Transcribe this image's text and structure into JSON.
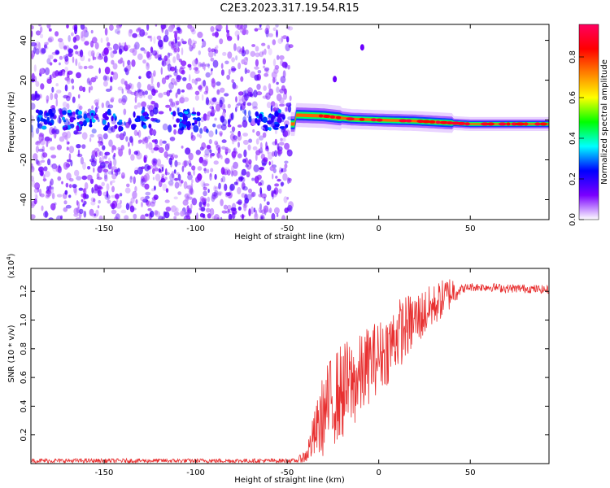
{
  "title": "C2E3.2023.317.19.54.R15",
  "chart_data": [
    {
      "type": "heatmap",
      "xlabel": "Height of straight line (km)",
      "ylabel": "Frequency (Hz)",
      "xlim": [
        -190,
        93
      ],
      "ylim": [
        -50,
        48
      ],
      "x_ticks": [
        -150,
        -100,
        -50,
        0,
        50
      ],
      "x_tick_labels": [
        "-150",
        "-100",
        "-50",
        "0",
        "50"
      ],
      "y_ticks": [
        -40,
        -20,
        0,
        20,
        40
      ],
      "y_tick_labels": [
        "-40",
        "-20",
        "0",
        "20",
        "40"
      ],
      "colorbar": {
        "label": "Normalized spectral amplitude",
        "range": [
          0,
          0.96
        ],
        "ticks": [
          0.0,
          0.2,
          0.4,
          0.6,
          0.8
        ],
        "tick_labels": [
          "0.0",
          "0.2",
          "0.4",
          "0.6",
          "0.8"
        ],
        "colors": [
          "#ffffff",
          "#7a00ff",
          "#0000ff",
          "#00ffff",
          "#00ff00",
          "#ffff00",
          "#ff8000",
          "#ff0000",
          "#ff0060"
        ]
      },
      "features": {
        "noise_region_x": [
          -190,
          -48
        ],
        "spectral_line_x": [
          -48,
          93
        ],
        "spectral_line_freq_hz": [
          [
            -45,
            2.5
          ],
          [
            -30,
            2.0
          ],
          [
            -15,
            0.5
          ],
          [
            0,
            0.0
          ],
          [
            20,
            -0.5
          ],
          [
            50,
            -2.0
          ],
          [
            93,
            -2.0
          ]
        ],
        "isolated_peaks": [
          [
            -24,
            20.5
          ],
          [
            -9,
            36.5
          ]
        ]
      }
    },
    {
      "type": "line",
      "xlabel": "Height of straight line (km)",
      "ylabel": "SNR (10 * v/v)",
      "y_multiplier_label": "(x10",
      "y_multiplier_exp": "4",
      "xlim": [
        -190,
        93
      ],
      "ylim": [
        0,
        1.36
      ],
      "x_ticks": [
        -150,
        -100,
        -50,
        0,
        50
      ],
      "x_tick_labels": [
        "-150",
        "-100",
        "-50",
        "0",
        "50"
      ],
      "y_ticks": [
        0.2,
        0.4,
        0.6,
        0.8,
        1.0,
        1.2
      ],
      "y_tick_labels": [
        "0.2",
        "0.4",
        "0.6",
        "0.8",
        "1.0",
        "1.2"
      ],
      "color": "#e83030",
      "trend": {
        "x": [
          -190,
          -45,
          -40,
          -35,
          -30,
          -25,
          -20,
          -15,
          -10,
          -5,
          0,
          5,
          10,
          15,
          20,
          25,
          30,
          35,
          40,
          50,
          60,
          70,
          80,
          93
        ],
        "y": [
          0.02,
          0.02,
          0.05,
          0.2,
          0.35,
          0.45,
          0.5,
          0.55,
          0.6,
          0.7,
          0.75,
          0.8,
          0.9,
          0.95,
          1.0,
          1.05,
          1.1,
          1.15,
          1.2,
          1.23,
          1.23,
          1.22,
          1.22,
          1.21
        ]
      },
      "noise_amplitude": {
        "x": [
          -190,
          -45,
          -40,
          -30,
          -20,
          -10,
          0,
          10,
          20,
          30,
          40,
          45,
          93
        ],
        "amp": [
          0.015,
          0.015,
          0.05,
          0.3,
          0.35,
          0.3,
          0.25,
          0.25,
          0.2,
          0.15,
          0.12,
          0.03,
          0.03
        ]
      }
    }
  ]
}
